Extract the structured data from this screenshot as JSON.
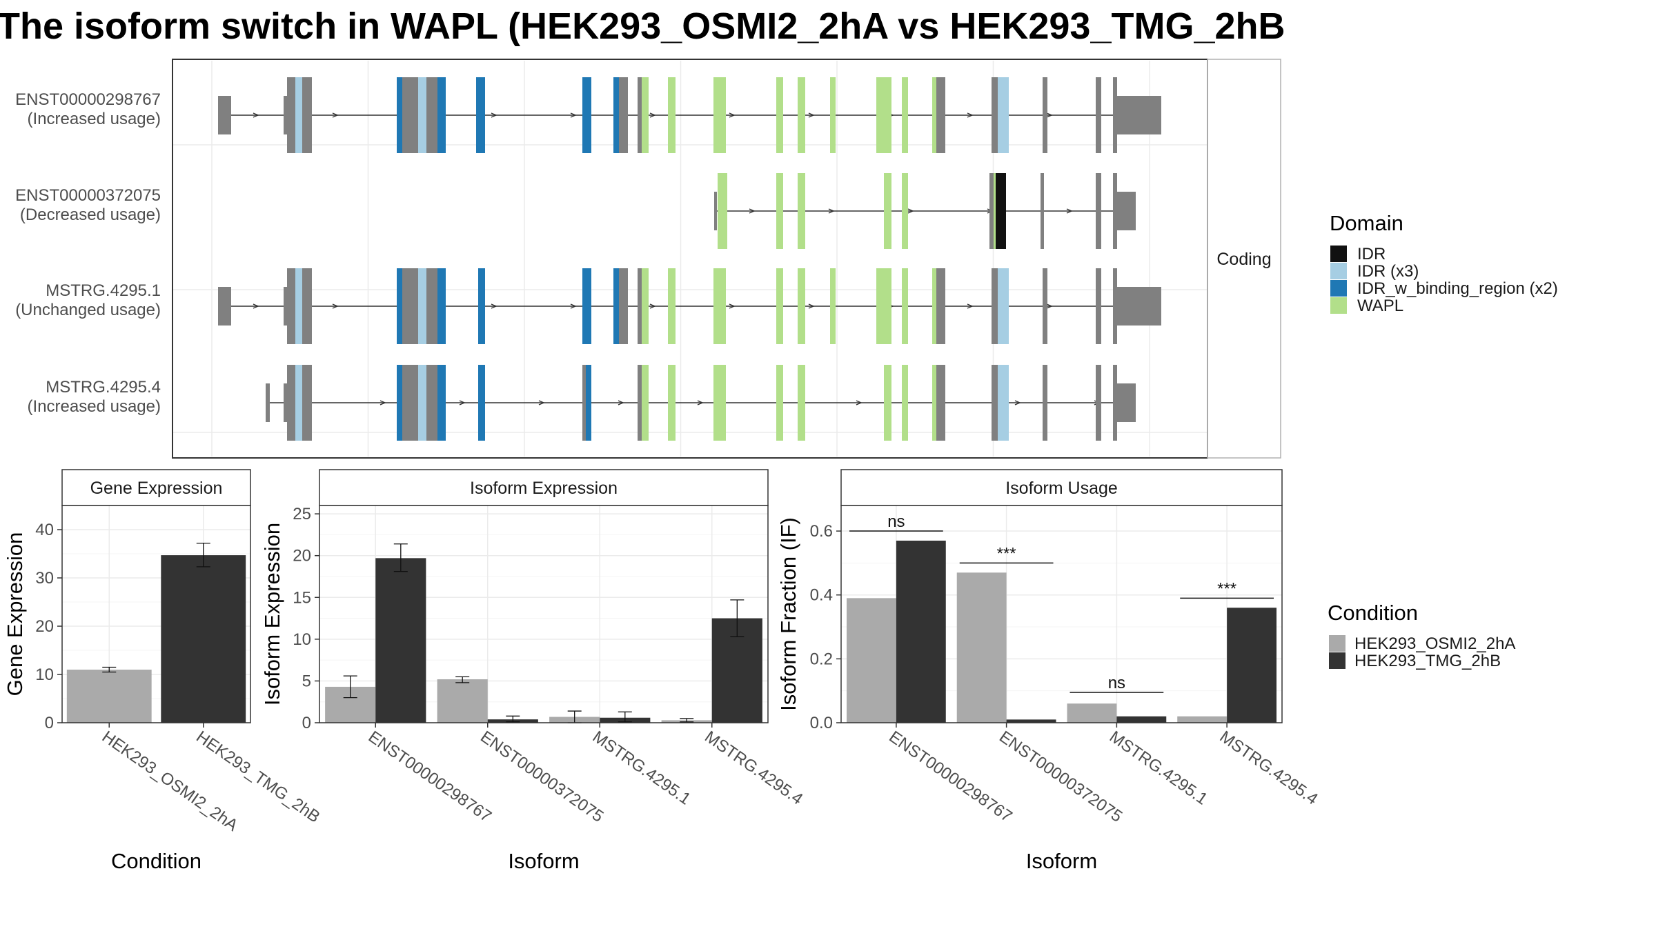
{
  "title": "The isoform switch in WAPL (HEK293_OSMI2_2hA vs HEK293_TMG_2hB",
  "colors": {
    "exon": "#808080",
    "IDR": "#111111",
    "IDR_x3": "#a6cee3",
    "IDR_w_binding_region": "#1f78b4",
    "WAPL": "#b2df8a",
    "cond1": "#aaaaaa",
    "cond2": "#333333"
  },
  "structure": {
    "facet_label": "Coding",
    "transcripts": [
      {
        "id": "ENST00000298767",
        "usage": "(Increased usage)"
      },
      {
        "id": "ENST00000372075",
        "usage": "(Decreased usage)"
      },
      {
        "id": "MSTRG.4295.1",
        "usage": "(Unchanged usage)"
      },
      {
        "id": "MSTRG.4295.4",
        "usage": "(Increased usage)"
      }
    ]
  },
  "legends": {
    "domain": {
      "title": "Domain",
      "items": [
        {
          "label": "IDR",
          "color": "#111111"
        },
        {
          "label": "IDR (x3)",
          "color": "#a6cee3"
        },
        {
          "label": "IDR_w_binding_region (x2)",
          "color": "#1f78b4"
        },
        {
          "label": "WAPL",
          "color": "#b2df8a"
        }
      ]
    },
    "condition": {
      "title": "Condition",
      "items": [
        {
          "label": "HEK293_OSMI2_2hA",
          "color": "#aaaaaa"
        },
        {
          "label": "HEK293_TMG_2hB",
          "color": "#333333"
        }
      ]
    }
  },
  "chart_data": [
    {
      "type": "bar",
      "title": "Gene Expression",
      "xlabel": "Condition",
      "ylabel": "Gene Expression",
      "ylim": [
        0,
        45
      ],
      "yticks": [
        0,
        10,
        20,
        30,
        40
      ],
      "categories": [
        "HEK293_OSMI2_2hA",
        "HEK293_TMG_2hB"
      ],
      "values": [
        11.0,
        34.7
      ],
      "errors": [
        [
          10.5,
          11.5
        ],
        [
          32.3,
          37.2
        ]
      ]
    },
    {
      "type": "bar",
      "title": "Isoform Expression",
      "xlabel": "Isoform",
      "ylabel": "Isoform Expression",
      "ylim": [
        0,
        26
      ],
      "yticks": [
        0,
        5,
        10,
        15,
        20,
        25
      ],
      "categories": [
        "ENST00000298767",
        "ENST00000372075",
        "MSTRG.4295.1",
        "MSTRG.4295.4"
      ],
      "series": [
        {
          "name": "HEK293_OSMI2_2hA",
          "values": [
            4.3,
            5.2,
            0.7,
            0.3
          ],
          "errors": [
            [
              3.0,
              5.6
            ],
            [
              4.8,
              5.5
            ],
            [
              0.0,
              1.4
            ],
            [
              0.1,
              0.5
            ]
          ]
        },
        {
          "name": "HEK293_TMG_2hB",
          "values": [
            19.7,
            0.4,
            0.6,
            12.5
          ],
          "errors": [
            [
              18.1,
              21.4
            ],
            [
              0.1,
              0.8
            ],
            [
              0.1,
              1.3
            ],
            [
              10.3,
              14.7
            ]
          ]
        }
      ]
    },
    {
      "type": "bar",
      "title": "Isoform Usage",
      "xlabel": "Isoform",
      "ylabel": "Isoform Fraction (IF)",
      "ylim": [
        0,
        0.68
      ],
      "yticks": [
        "0.0",
        "0.2",
        "0.4",
        "0.6"
      ],
      "categories": [
        "ENST00000298767",
        "ENST00000372075",
        "MSTRG.4295.1",
        "MSTRG.4295.4"
      ],
      "series": [
        {
          "name": "HEK293_OSMI2_2hA",
          "values": [
            0.39,
            0.47,
            0.06,
            0.02
          ]
        },
        {
          "name": "HEK293_TMG_2hB",
          "values": [
            0.57,
            0.01,
            0.02,
            0.36
          ]
        }
      ],
      "significance": [
        {
          "label": "ns",
          "y": 0.6
        },
        {
          "label": "***",
          "y": 0.5
        },
        {
          "label": "ns",
          "y": 0.095
        },
        {
          "label": "***",
          "y": 0.39
        }
      ]
    }
  ]
}
